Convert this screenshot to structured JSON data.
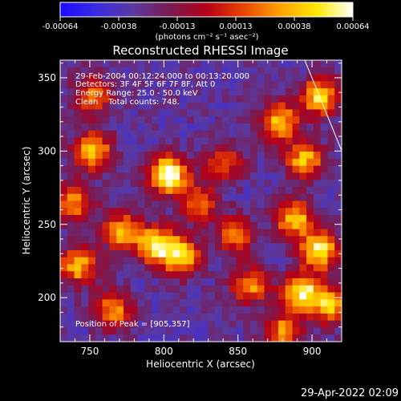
{
  "chart_data": {
    "type": "heatmap",
    "title": "Reconstructed RHESSI Image",
    "xlabel": "Heliocentric X (arcsec)",
    "ylabel": "Heliocentric Y (arcsec)",
    "xlim": [
      730,
      920
    ],
    "ylim": [
      170,
      362
    ],
    "x_ticks": [
      "750",
      "800",
      "850",
      "900"
    ],
    "y_ticks": [
      "200",
      "250",
      "300",
      "350"
    ],
    "colorbar": {
      "ticks": [
        "-0.00064",
        "-0.00038",
        "-0.00013",
        "0.00013",
        "0.00038",
        "0.00064"
      ],
      "unit_label": "(photons cm⁻² s⁻¹ asec⁻²)",
      "range": [
        -0.00064,
        0.00064
      ],
      "colors": [
        "#1a0cff",
        "#3a2be0",
        "#5a3aa0",
        "#7a1a50",
        "#b40018",
        "#e84400",
        "#ffa000",
        "#ffe800",
        "#ffffff"
      ]
    },
    "annotations": [
      "29-Feb-2004 00:12:24.000 to 00:13:20.000",
      "Detectors: 3F 4F 5F 6F 7F 8F, Att 0",
      "Energy Range: 25.0 - 50.0 keV",
      "Clean    Total counts: 748."
    ],
    "peak_label": "Position of Peak = [905,357]",
    "peak": [
      905,
      357
    ],
    "hot_spots": [
      {
        "x": 803,
        "y": 284,
        "intensity": 1.0
      },
      {
        "x": 795,
        "y": 236,
        "intensity": 0.85
      },
      {
        "x": 812,
        "y": 228,
        "intensity": 0.75
      },
      {
        "x": 772,
        "y": 245,
        "intensity": 0.7
      },
      {
        "x": 752,
        "y": 300,
        "intensity": 0.75
      },
      {
        "x": 742,
        "y": 222,
        "intensity": 0.7
      },
      {
        "x": 766,
        "y": 192,
        "intensity": 0.6
      },
      {
        "x": 823,
        "y": 265,
        "intensity": 0.55
      },
      {
        "x": 878,
        "y": 320,
        "intensity": 0.75
      },
      {
        "x": 905,
        "y": 337,
        "intensity": 0.8
      },
      {
        "x": 895,
        "y": 294,
        "intensity": 0.7
      },
      {
        "x": 888,
        "y": 254,
        "intensity": 0.75
      },
      {
        "x": 905,
        "y": 232,
        "intensity": 0.85
      },
      {
        "x": 893,
        "y": 204,
        "intensity": 0.85
      },
      {
        "x": 912,
        "y": 195,
        "intensity": 0.7
      },
      {
        "x": 858,
        "y": 208,
        "intensity": 0.6
      },
      {
        "x": 848,
        "y": 243,
        "intensity": 0.55
      },
      {
        "x": 840,
        "y": 292,
        "intensity": 0.5
      },
      {
        "x": 752,
        "y": 338,
        "intensity": 0.55
      },
      {
        "x": 881,
        "y": 178,
        "intensity": 0.6
      },
      {
        "x": 740,
        "y": 265,
        "intensity": 0.6
      }
    ]
  },
  "footer": {
    "timestamp": "29-Apr-2022 02:09"
  }
}
